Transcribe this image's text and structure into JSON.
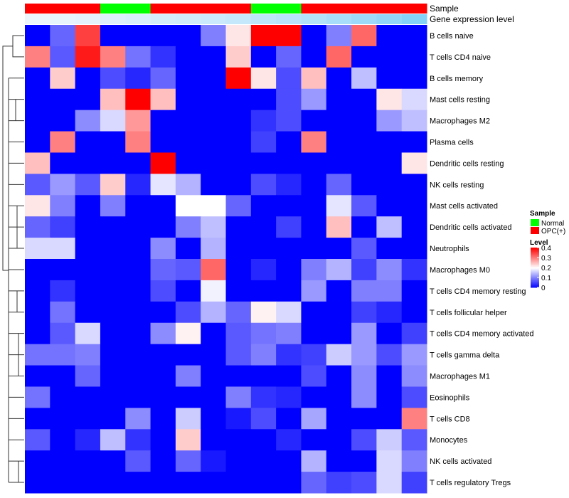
{
  "chart_data": {
    "type": "heatmap",
    "annotations": {
      "sample_track_label": "Sample",
      "expression_track_label": "Gene expression level"
    },
    "sample_groups": [
      "OPC(+)",
      "OPC(+)",
      "OPC(+)",
      "Normal",
      "Normal",
      "OPC(+)",
      "OPC(+)",
      "OPC(+)",
      "OPC(+)",
      "Normal",
      "Normal",
      "OPC(+)",
      "OPC(+)",
      "OPC(+)",
      "OPC(+)",
      "OPC(+)"
    ],
    "expression_level_track": [
      0.05,
      0.08,
      0.11,
      0.14,
      0.17,
      0.2,
      0.23,
      0.26,
      0.3,
      0.34,
      0.38,
      0.42,
      0.48,
      0.55,
      0.62,
      0.7
    ],
    "rows": [
      "B cells naive",
      "T cells CD4 naive",
      "B cells memory",
      "Mast cells resting",
      "Macrophages M2",
      "Plasma cells",
      "Dendritic cells resting",
      "NK cells resting",
      "Mast cells activated",
      "Dendritic cells activated",
      "Neutrophils",
      "Macrophages M0",
      "T cells CD4 memory resting",
      "T cells follicular helper",
      "T cells CD4 memory activated",
      "T cells gamma delta",
      "Macrophages M1",
      "Eosinophils",
      "T cells CD8",
      "Monocytes",
      "NK cells activated",
      "T cells regulatory  Tregs"
    ],
    "values": [
      [
        0,
        0.08,
        0.35,
        0,
        0,
        0,
        0,
        0.1,
        0.22,
        0.4,
        0.4,
        0,
        0.1,
        0.32,
        0,
        0
      ],
      [
        0.3,
        0.07,
        0.38,
        0.3,
        0.09,
        0.04,
        0,
        0,
        0.24,
        0,
        0.08,
        0,
        0.32,
        0,
        0,
        0
      ],
      [
        0,
        0.24,
        0,
        0.06,
        0.03,
        0.08,
        0,
        0,
        0.4,
        0.22,
        0.06,
        0.25,
        0,
        0.15,
        0,
        0
      ],
      [
        0,
        0,
        0,
        0.25,
        0.4,
        0.25,
        0,
        0,
        0,
        0,
        0.06,
        0.12,
        0,
        0,
        0.22,
        0.17
      ],
      [
        0,
        0,
        0.11,
        0.17,
        0.28,
        0,
        0,
        0,
        0,
        0.04,
        0.06,
        0,
        0,
        0,
        0.12,
        0.15
      ],
      [
        0,
        0.3,
        0,
        0,
        0.3,
        0,
        0,
        0,
        0,
        0.05,
        0,
        0.3,
        0,
        0,
        0,
        0
      ],
      [
        0.25,
        0,
        0,
        0,
        0,
        0.4,
        0,
        0,
        0,
        0,
        0,
        0,
        0,
        0,
        0,
        0.22
      ],
      [
        0.07,
        0.12,
        0.07,
        0.24,
        0.03,
        0.18,
        0.14,
        0,
        0,
        0.06,
        0.03,
        0,
        0.08,
        0,
        0,
        0
      ],
      [
        0.22,
        0.1,
        0,
        0.1,
        0,
        0,
        0.2,
        0.2,
        0.08,
        0,
        0,
        0,
        0.18,
        0.07,
        0,
        0
      ],
      [
        0.08,
        0.05,
        0,
        0,
        0,
        0,
        0.1,
        0.15,
        0,
        0,
        0.05,
        0,
        0.25,
        0,
        0.15,
        0
      ],
      [
        0.17,
        0.17,
        0,
        0,
        0,
        0.11,
        0,
        0.14,
        0,
        0,
        0,
        0,
        0,
        0.07,
        0,
        0
      ],
      [
        0,
        0,
        0,
        0,
        0,
        0.08,
        0.07,
        0.32,
        0,
        0.03,
        0,
        0.1,
        0.14,
        0.05,
        0.11,
        0.04
      ],
      [
        0,
        0.04,
        0,
        0,
        0,
        0.06,
        0,
        0.19,
        0,
        0,
        0,
        0.12,
        0,
        0.1,
        0.1,
        0
      ],
      [
        0,
        0.09,
        0,
        0,
        0,
        0,
        0.06,
        0.14,
        0.08,
        0.21,
        0.17,
        0,
        0,
        0.05,
        0.03,
        0
      ],
      [
        0,
        0.07,
        0.17,
        0,
        0,
        0.11,
        0.21,
        0,
        0.07,
        0.09,
        0.1,
        0,
        0,
        0.12,
        0,
        0.05
      ],
      [
        0.09,
        0.09,
        0.1,
        0,
        0,
        0,
        0,
        0,
        0.07,
        0.1,
        0.04,
        0.05,
        0.16,
        0.12,
        0.06,
        0.12
      ],
      [
        0,
        0,
        0.08,
        0,
        0,
        0,
        0.1,
        0,
        0,
        0,
        0,
        0.06,
        0,
        0.11,
        0,
        0.11
      ],
      [
        0.09,
        0,
        0,
        0,
        0,
        0,
        0,
        0,
        0.1,
        0.04,
        0.03,
        0,
        0,
        0.11,
        0,
        0.06
      ],
      [
        0,
        0,
        0,
        0,
        0.11,
        0,
        0.16,
        0,
        0.02,
        0.06,
        0,
        0.13,
        0,
        0,
        0,
        0.3
      ],
      [
        0.07,
        0,
        0.03,
        0.15,
        0.04,
        0,
        0.24,
        0,
        0,
        0,
        0.03,
        0,
        0,
        0.06,
        0.16,
        0.07
      ],
      [
        0,
        0,
        0,
        0,
        0.07,
        0,
        0.08,
        0.02,
        0,
        0,
        0,
        0.14,
        0,
        0,
        0.17,
        0.1
      ],
      [
        0,
        0,
        0,
        0,
        0,
        0,
        0,
        0,
        0,
        0,
        0,
        0.08,
        0.05,
        0.06,
        0.17,
        0.05
      ]
    ],
    "legend": {
      "sample_title": "Sample",
      "sample_entries": [
        {
          "label": "Normal",
          "color": "#00ff00"
        },
        {
          "label": "OPC(+)",
          "color": "#ff0000"
        }
      ],
      "level_title": "Level",
      "level_ticks": [
        "0.4",
        "0.3",
        "0.2",
        "0.1",
        "0"
      ],
      "level_tick_values": [
        0.4,
        0.3,
        0.2,
        0.1,
        0
      ]
    },
    "color_scale": {
      "min": 0,
      "mid": 0.2,
      "max": 0.4,
      "low": "#0000ff",
      "midColor": "#ffffff",
      "high": "#ff0000"
    },
    "expression_track_colors": {
      "low": "#f4f8fc",
      "high": "#56c2f8"
    },
    "legend_placement": "right"
  }
}
